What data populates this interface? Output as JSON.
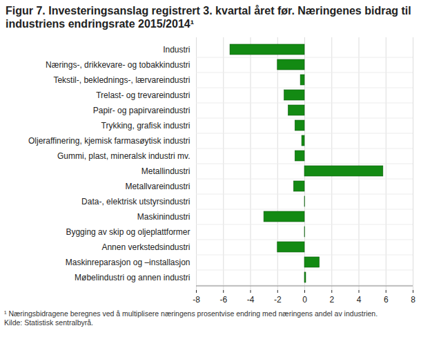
{
  "chart_data": {
    "type": "bar",
    "orientation": "horizontal",
    "title": "Figur 7. Investeringsanslag registrert 3. kvartal året før. Næringenes bidrag til industriens endringsrate 2015/2014¹",
    "categories": [
      "Industri",
      "Nærings-, drikkevare- og tobakkindustri",
      "Tekstil-, beklednings-, lærvareindustri",
      "Trelast- og trevareindustri",
      "Papir- og papirvareindustri",
      "Trykking, grafisk industri",
      "Oljeraffinering, kjemisk farmasøytisk industri",
      "Gummi, plast, mineralsk industri mv.",
      "Metallindustri",
      "Metallvareindustri",
      "Data-, elektrisk utstyrsindustri",
      "Maskinindustri",
      "Bygging av skip og oljeplattformer",
      "Annen verkstedsindustri",
      "Maskinreparasjon og –installasjon",
      "Møbelindustri og annen industri"
    ],
    "values": [
      -5.5,
      -2.0,
      -0.3,
      -1.5,
      -1.2,
      -0.7,
      -0.2,
      -0.7,
      5.8,
      -0.8,
      0.02,
      -3.0,
      0.02,
      -2.0,
      1.1,
      0.1
    ],
    "color": "#138a13",
    "xlim": [
      -8,
      8
    ],
    "xticks": [
      -8,
      -6,
      -4,
      -2,
      0,
      2,
      4,
      6,
      8
    ],
    "grid": true,
    "footnote": "¹ Næringsbidragene beregnes ved å multiplisere næringens prosentvise endring med næringens andel av industrien.",
    "source": "Kilde: Statistisk sentralbyrå."
  }
}
